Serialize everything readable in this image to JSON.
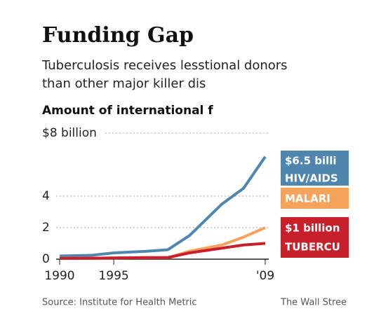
{
  "chart_data": {
    "type": "line",
    "title": "Funding Gap",
    "subtitle": [
      "Tuberculosis receives lesstional donors",
      "than other major killer dis"
    ],
    "axis_title": "Amount of international f",
    "x": [
      1990,
      1993,
      1995,
      1998,
      2000,
      2002,
      2005,
      2007,
      2009
    ],
    "series": [
      {
        "name": "HIV/AIDS",
        "color": "#4f86b0",
        "values": [
          0.2,
          0.25,
          0.4,
          0.5,
          0.6,
          1.5,
          3.5,
          4.5,
          6.5
        ]
      },
      {
        "name": "MALARI",
        "color": "#f5a25d",
        "values": [
          0.05,
          0.06,
          0.08,
          0.1,
          0.1,
          0.5,
          0.9,
          1.4,
          2.0
        ]
      },
      {
        "name": "TUBERCU",
        "color": "#c8202a",
        "values": [
          0.05,
          0.06,
          0.08,
          0.1,
          0.1,
          0.4,
          0.7,
          0.9,
          1.0
        ]
      }
    ],
    "annotations": [
      "$6.5 billi",
      "$1 billion"
    ],
    "xlim": [
      1990,
      2009
    ],
    "xticks": [
      1990,
      1995,
      {
        "value": 2009,
        "label": "'09"
      }
    ],
    "ylim": [
      0,
      8
    ],
    "yticks": [
      0,
      2,
      4,
      {
        "value": 8,
        "label": "$8 billion"
      }
    ],
    "grid": true,
    "source": "Source: Institute for Health Metric",
    "credit": "The Wall Stree"
  }
}
